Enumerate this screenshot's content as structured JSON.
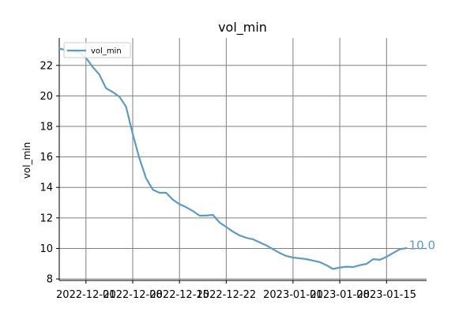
{
  "chart_data": {
    "type": "line",
    "title": "vol_min",
    "xlabel": "",
    "ylabel": "vol_min",
    "legend": {
      "position": "top-left",
      "entries": [
        "vol_min"
      ]
    },
    "grid": true,
    "xlim": [
      "2022-11-27",
      "2023-01-21"
    ],
    "ylim": [
      7.9,
      23.8
    ],
    "x_ticks": [
      "2022-12-01",
      "2022-12-08",
      "2022-12-15",
      "2022-12-22",
      "2023-01-01",
      "2023-01-08",
      "2023-01-15"
    ],
    "y_ticks": [
      8,
      10,
      12,
      14,
      16,
      18,
      20,
      22
    ],
    "series": [
      {
        "name": "vol_min",
        "color": "#5b9bc6",
        "x": [
          "2022-11-27",
          "2022-11-28",
          "2022-11-29",
          "2022-11-30",
          "2022-12-01",
          "2022-12-02",
          "2022-12-03",
          "2022-12-04",
          "2022-12-05",
          "2022-12-06",
          "2022-12-07",
          "2022-12-08",
          "2022-12-09",
          "2022-12-10",
          "2022-12-11",
          "2022-12-12",
          "2022-12-13",
          "2022-12-14",
          "2022-12-15",
          "2022-12-16",
          "2022-12-17",
          "2022-12-18",
          "2022-12-19",
          "2022-12-20",
          "2022-12-21",
          "2022-12-22",
          "2022-12-23",
          "2022-12-24",
          "2022-12-25",
          "2022-12-26",
          "2022-12-27",
          "2022-12-28",
          "2022-12-29",
          "2022-12-30",
          "2022-12-31",
          "2023-01-01",
          "2023-01-02",
          "2023-01-03",
          "2023-01-04",
          "2023-01-05",
          "2023-01-06",
          "2023-01-07",
          "2023-01-08",
          "2023-01-09",
          "2023-01-10",
          "2023-01-11",
          "2023-01-12",
          "2023-01-13",
          "2023-01-14",
          "2023-01-15",
          "2023-01-16",
          "2023-01-17",
          "2023-01-18"
        ],
        "values": [
          23.1,
          23.0,
          22.95,
          22.85,
          22.5,
          21.9,
          21.4,
          20.5,
          20.25,
          19.95,
          19.3,
          17.5,
          15.9,
          14.6,
          13.85,
          13.65,
          13.65,
          13.2,
          12.9,
          12.7,
          12.45,
          12.15,
          12.15,
          12.2,
          11.7,
          11.4,
          11.1,
          10.85,
          10.7,
          10.6,
          10.4,
          10.2,
          9.95,
          9.7,
          9.5,
          9.4,
          9.35,
          9.3,
          9.2,
          9.1,
          8.9,
          8.65,
          8.75,
          8.8,
          8.78,
          8.9,
          8.98,
          9.3,
          9.25,
          9.45,
          9.7,
          9.95,
          10.02
        ]
      }
    ],
    "annotations": [
      {
        "label": "10.0",
        "x": "2023-01-18",
        "y": 10.0
      }
    ]
  }
}
